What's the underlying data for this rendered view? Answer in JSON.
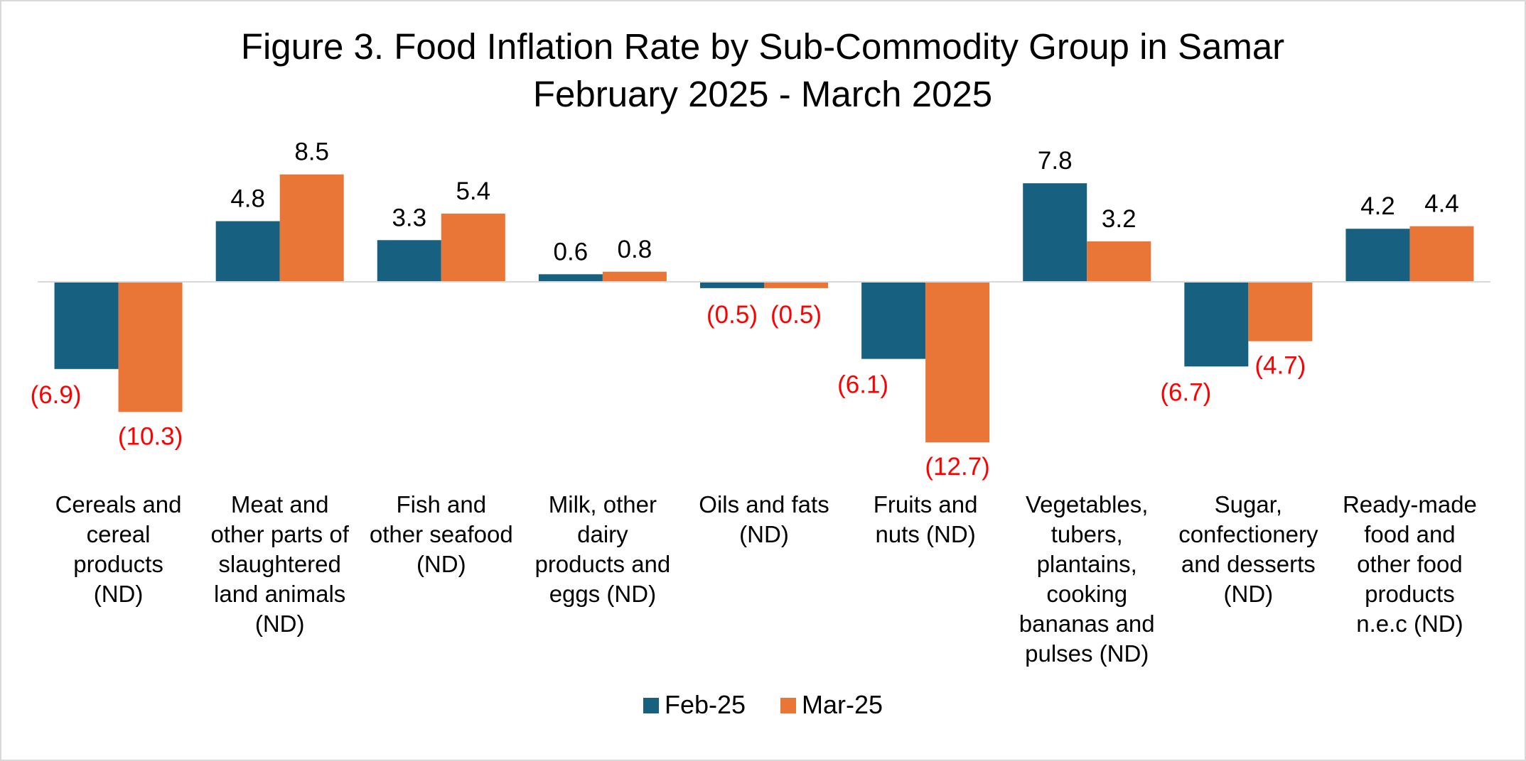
{
  "chart_data": {
    "type": "bar",
    "title": "Figure 3. Food Inflation Rate by Sub-Commodity Group in Samar",
    "subtitle": "February 2025 - March 2025",
    "categories": [
      "Cereals and cereal products (ND)",
      "Meat and other parts of slaughtered land animals (ND)",
      "Fish and other seafood (ND)",
      "Milk, other dairy products and eggs (ND)",
      "Oils and fats (ND)",
      "Fruits and nuts (ND)",
      "Vegetables, tubers, plantains, cooking bananas and pulses (ND)",
      "Sugar, confectionery and desserts (ND)",
      "Ready-made food and other food products n.e.c (ND)"
    ],
    "category_lines": [
      [
        "Cereals and",
        "cereal",
        "products",
        "(ND)"
      ],
      [
        "Meat and",
        "other parts of",
        "slaughtered",
        "land animals",
        "(ND)"
      ],
      [
        "Fish and",
        "other seafood",
        "(ND)"
      ],
      [
        "Milk, other",
        "dairy",
        "products and",
        "eggs (ND)"
      ],
      [
        "Oils and fats",
        "(ND)"
      ],
      [
        "Fruits and",
        "nuts (ND)"
      ],
      [
        "Vegetables,",
        "tubers,",
        "plantains,",
        "cooking",
        "bananas and",
        "pulses (ND)"
      ],
      [
        "Sugar,",
        "confectionery",
        "and desserts",
        "(ND)"
      ],
      [
        "Ready-made",
        "food and",
        "other food",
        "products",
        "n.e.c (ND)"
      ]
    ],
    "series": [
      {
        "name": "Feb-25",
        "color": "#17607f",
        "values": [
          -6.9,
          4.8,
          3.3,
          0.6,
          -0.5,
          -6.1,
          7.8,
          -6.7,
          4.2
        ],
        "labels": [
          "(6.9)",
          "4.8",
          "3.3",
          "0.6",
          "(0.5)",
          "(6.1)",
          "7.8",
          "(6.7)",
          "4.2"
        ]
      },
      {
        "name": "Mar-25",
        "color": "#e97537",
        "values": [
          -10.3,
          8.5,
          5.4,
          0.8,
          -0.5,
          -12.7,
          3.2,
          -4.7,
          4.4
        ],
        "labels": [
          "(10.3)",
          "8.5",
          "5.4",
          "0.8",
          "(0.5)",
          "(12.7)",
          "3.2",
          "(4.7)",
          "4.4"
        ]
      }
    ],
    "negative_label_color": "#ff0000",
    "positive_label_color": "#000000",
    "ylim": [
      -14,
      9
    ],
    "grid": false,
    "legend": "bottom-center",
    "xlabel": "",
    "ylabel": ""
  }
}
